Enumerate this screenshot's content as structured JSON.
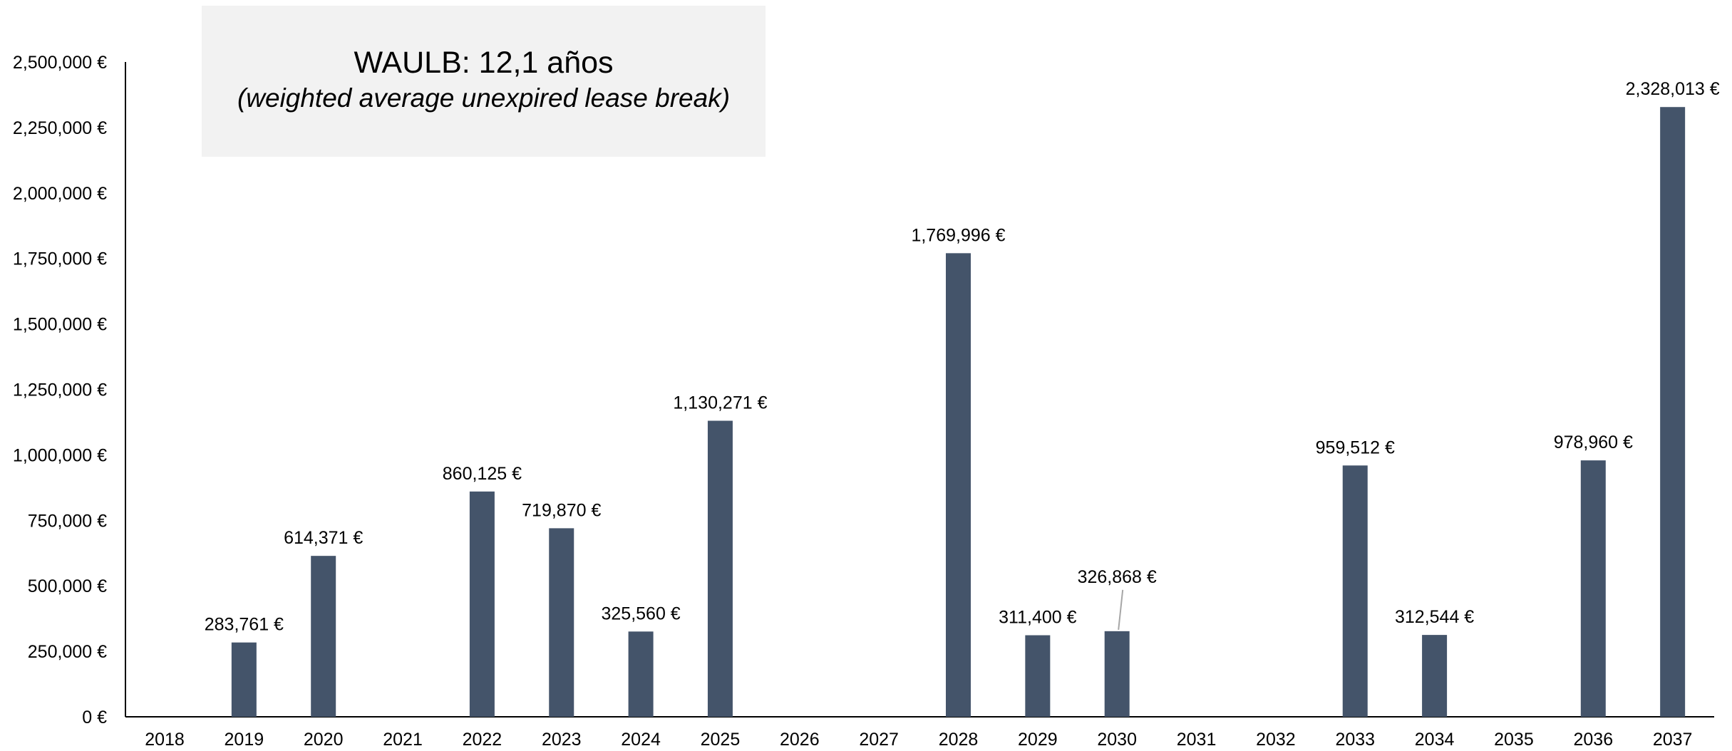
{
  "callout": {
    "metric": "WAULB:",
    "value": "12,1 años",
    "subtitle": "(weighted average unexpired lease break)",
    "background": "#f2f2f2"
  },
  "colors": {
    "bar": "#44546a",
    "axis": "#000000",
    "leader": "#a6a6a6"
  },
  "chart_data": {
    "type": "bar",
    "title": "",
    "xlabel": "",
    "ylabel": "",
    "ylim": [
      0,
      2500000
    ],
    "yticks": [
      0,
      250000,
      500000,
      750000,
      1000000,
      1250000,
      1500000,
      1750000,
      2000000,
      2250000,
      2500000
    ],
    "ytick_labels": [
      "0 €",
      "250,000 €",
      "500,000 €",
      "750,000 €",
      "1,000,000 €",
      "1,250,000 €",
      "1,500,000 €",
      "1,750,000 €",
      "2,000,000 €",
      "2,250,000 €",
      "2,500,000 €"
    ],
    "categories": [
      "2018",
      "2019",
      "2020",
      "2021",
      "2022",
      "2023",
      "2024",
      "2025",
      "2026",
      "2027",
      "2028",
      "2029",
      "2030",
      "2031",
      "2032",
      "2033",
      "2034",
      "2035",
      "2036",
      "2037"
    ],
    "values": [
      0,
      283761,
      614371,
      0,
      860125,
      719870,
      325560,
      1130271,
      0,
      0,
      1769996,
      311400,
      326868,
      0,
      0,
      959512,
      312544,
      0,
      978960,
      2328013
    ],
    "data_labels": [
      "",
      "283,761 €",
      "614,371 €",
      "",
      "860,125 €",
      "719,870 €",
      "325,560 €",
      "1,130,271 €",
      "",
      "",
      "1,769,996 €",
      "311,400 €",
      "326,868 €",
      "",
      "",
      "959,512 €",
      "312,544 €",
      "",
      "978,960 €",
      "2,328,013 €"
    ],
    "grid": false,
    "legend": "none"
  }
}
